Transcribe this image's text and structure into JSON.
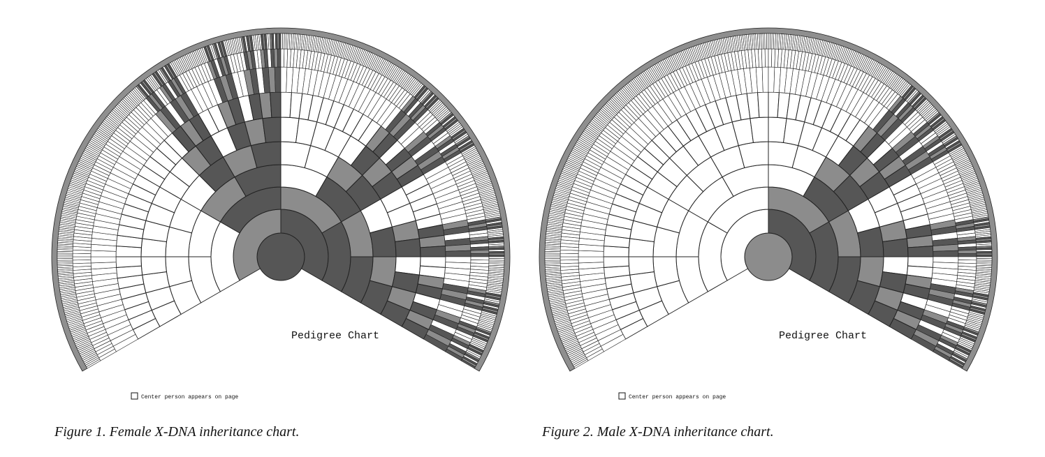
{
  "colors": {
    "dark": "#565656",
    "medium": "#8c8c8c",
    "empty": "#ffffff",
    "border": "#8f8f8f",
    "line": "#222222"
  },
  "legend_text": "Center person appears on page",
  "figures": [
    {
      "id": "fig1",
      "title": "Pedigree Chart",
      "caption": "Figure 1. Female X-DNA inheritance chart.",
      "center_person_sex": "female"
    },
    {
      "id": "fig2",
      "title": "Pedigree Chart",
      "caption": "Figure 2. Male X-DNA inheritance chart.",
      "center_person_sex": "male"
    }
  ]
}
